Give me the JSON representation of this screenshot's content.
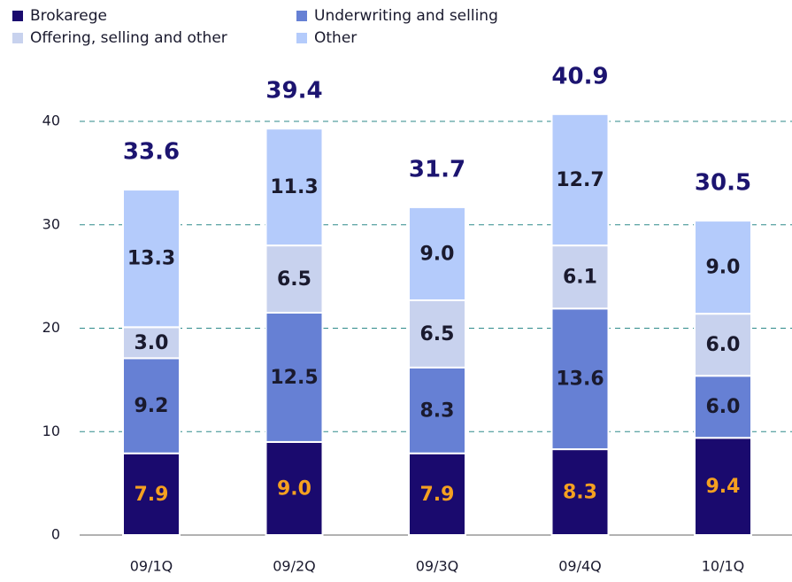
{
  "chart_data": {
    "type": "stacked_bar",
    "categories": [
      "09/1Q",
      "09/2Q",
      "09/3Q",
      "09/4Q",
      "10/1Q"
    ],
    "series": [
      {
        "name": "Brokarege",
        "color": "#1a0a6e",
        "label_color": "#f5a020",
        "values": [
          7.9,
          9.0,
          7.9,
          8.3,
          9.4
        ],
        "value_labels": [
          "7.9",
          "9.0",
          "7.9",
          "8.3",
          "9.4"
        ]
      },
      {
        "name": "Underwriting and selling",
        "color": "#6680d4",
        "label_color": "#1a1a2e",
        "values": [
          9.2,
          12.5,
          8.3,
          13.6,
          6.0
        ],
        "value_labels": [
          "9.2",
          "12.5",
          "8.3",
          "13.6",
          "6.0"
        ]
      },
      {
        "name": "Offering, selling and other",
        "color": "#c8d2ee",
        "label_color": "#1a1a2e",
        "values": [
          3.0,
          6.5,
          6.5,
          6.1,
          6.0
        ],
        "value_labels": [
          "3.0",
          "6.5",
          "6.5",
          "6.1",
          "6.0"
        ]
      },
      {
        "name": "Other",
        "color": "#b4cbfb",
        "label_color": "#1a1a2e",
        "values": [
          13.3,
          11.3,
          9.0,
          12.7,
          9.0
        ],
        "value_labels": [
          "13.3",
          "11.3",
          "9.0",
          "12.7",
          "9.0"
        ]
      }
    ],
    "totals": [
      33.6,
      39.4,
      31.7,
      40.9,
      30.5
    ],
    "ylim": [
      0,
      40
    ],
    "yticks": [
      0,
      10,
      20,
      30,
      40
    ],
    "grid": true
  }
}
